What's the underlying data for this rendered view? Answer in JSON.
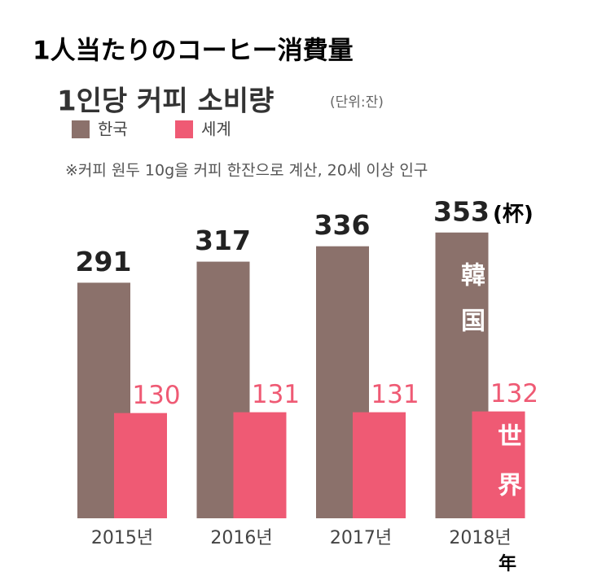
{
  "chart_data": {
    "type": "bar",
    "title": "1人当たりのコーヒー消費量",
    "subtitle": "1인당 커피 소비량",
    "unit_note": "(단위:잔)",
    "note": "※커피 원두 10g을 커피 한잔으로 계산, 20세 이상 인구",
    "unit": "(杯)",
    "annotations": [
      "韓国",
      "世界",
      "年"
    ],
    "categories": [
      "2015년",
      "2016년",
      "2017년",
      "2018년"
    ],
    "series": [
      {
        "name": "한국",
        "color": "#8b716b",
        "values": [
          291,
          317,
          336,
          353
        ]
      },
      {
        "name": "세계",
        "color": "#ef5a74",
        "values": [
          130,
          131,
          131,
          132
        ]
      }
    ]
  }
}
